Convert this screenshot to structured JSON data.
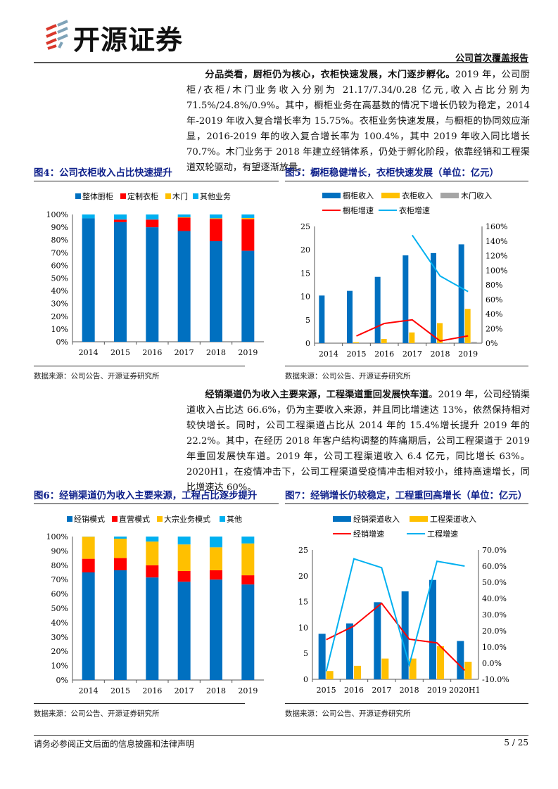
{
  "header": {
    "logo_text": "开源证券",
    "report_type": "公司首次覆盖报告"
  },
  "paragraph1": {
    "lead": "分品类看，厨柜仍为核心，衣柜快速发展，木门逐步孵化。",
    "body": "2019 年，公司厨柜/衣柜/木门业务收入分别为 21.17/7.34/0.28 亿元,收入占比分别为 71.5%/24.8%/0.9%。其中，橱柜业务在高基数的情况下增长仍较为稳定，2014 年-2019 年收入复合增长率为 15.75%。衣柜业务快速发展，与橱柜的协同效应渐显，2016-2019 年的收入复合增长率为 100.4%，其中 2019 年收入同比增长 70.7%。木门业务于 2018 年建立经销体系，仍处于孵化阶段，依靠经销和工程渠道双轮驱动，有望逐渐放量。"
  },
  "paragraph2": {
    "lead": "经销渠道仍为收入主要来源，工程渠道重回发展快车道",
    "body": "。2019 年，公司经销渠道收入占比达 66.6%，仍为主要收入来源，并且同比增速达 13%，依然保持相对较快增长。同时，公司工程渠道占比从 2014 年的 15.4%增长提升 2019 年的 22.2%。其中，在经历 2018 年客户结构调整的阵痛期后，公司工程渠道于 2019 年重回发展快车道。2019 年，公司工程渠道收入 6.4 亿元，同比增长 63%。2020H1，在疫情冲击下，公司工程渠道受疫情冲击相对较小，维持高速增长，同比增速达 60%。"
  },
  "figures": [
    {
      "title": "图4：公司衣柜收入占比快速提升",
      "source": "数据来源：公司公告、开源证券研究所"
    },
    {
      "title": "图5：橱柜稳健增长，衣柜快速发展（单位：亿元）",
      "source": "数据来源：公司公告、开源证券研究所"
    },
    {
      "title": "图6：经销渠道仍为收入主要来源，工程占比逐步提升",
      "source": "数据来源：公司公告、开源证券研究所"
    },
    {
      "title": "图7：经销增长仍较稳定，工程重回高增长（单位：亿元）",
      "source": "数据来源：公司公告、开源证券研究所"
    }
  ],
  "chart_data": [
    {
      "type": "bar",
      "stacked": true,
      "categories": [
        "2014",
        "2015",
        "2016",
        "2017",
        "2018",
        "2019"
      ],
      "ylim": [
        0,
        100
      ],
      "yticks": [
        "0%",
        "10%",
        "20%",
        "30%",
        "40%",
        "50%",
        "60%",
        "70%",
        "80%",
        "90%",
        "100%"
      ],
      "legend": "top",
      "grid": false,
      "series": [
        {
          "name": "整体厨柜",
          "color": "#0070c0",
          "values": [
            97,
            94,
            90,
            87,
            79,
            71.5
          ]
        },
        {
          "name": "定制衣柜",
          "color": "#ff0000",
          "values": [
            0,
            2,
            6,
            10.5,
            17.5,
            24.8
          ]
        },
        {
          "name": "木门",
          "color": "#ffc000",
          "values": [
            0,
            0,
            0,
            0.3,
            0.5,
            0.9
          ]
        },
        {
          "name": "其他业务",
          "color": "#00b0f0",
          "values": [
            3,
            4,
            4,
            2.2,
            3,
            2.8
          ]
        }
      ]
    },
    {
      "type": "bar+line",
      "categories": [
        "2014",
        "2015",
        "2016",
        "2017",
        "2018",
        "2019"
      ],
      "ylim": [
        0,
        25
      ],
      "yticks": [
        "0",
        "5",
        "10",
        "15",
        "20",
        "25"
      ],
      "y2lim": [
        0,
        160
      ],
      "y2ticks": [
        "0%",
        "20%",
        "40%",
        "60%",
        "80%",
        "100%",
        "120%",
        "140%",
        "160%"
      ],
      "legend": "top",
      "grid": false,
      "bars": [
        {
          "name": "橱柜收入",
          "color": "#0070c0",
          "values": [
            10.2,
            11.2,
            14.2,
            18.8,
            19.3,
            21.17
          ]
        },
        {
          "name": "衣柜收入",
          "color": "#ffc000",
          "values": [
            0,
            0.2,
            0.9,
            2.3,
            4.3,
            7.34
          ]
        },
        {
          "name": "木门收入",
          "color": "#a5a5a5",
          "values": [
            0,
            0,
            0,
            0,
            0.1,
            0.28
          ]
        }
      ],
      "lines": [
        {
          "name": "橱柜增速",
          "color": "#ff0000",
          "values": [
            null,
            9.8,
            27,
            32,
            3,
            10
          ]
        },
        {
          "name": "衣柜增速",
          "color": "#00b0f0",
          "values": [
            null,
            null,
            null,
            148,
            92,
            70.7
          ]
        }
      ]
    },
    {
      "type": "bar",
      "stacked": true,
      "categories": [
        "2014",
        "2015",
        "2016",
        "2017",
        "2018",
        "2019"
      ],
      "ylim": [
        0,
        100
      ],
      "yticks": [
        "0%",
        "10%",
        "20%",
        "30%",
        "40%",
        "50%",
        "60%",
        "70%",
        "80%",
        "90%",
        "100%"
      ],
      "legend": "top",
      "grid": false,
      "series": [
        {
          "name": "经销模式",
          "color": "#0070c0",
          "values": [
            75,
            76.5,
            71.5,
            68.5,
            70,
            66.6
          ]
        },
        {
          "name": "直营模式",
          "color": "#ff0000",
          "values": [
            9.5,
            8.5,
            8.5,
            7.5,
            6.5,
            6.4
          ]
        },
        {
          "name": "大宗业务模式",
          "color": "#ffc000",
          "values": [
            15.4,
            13.5,
            16.5,
            18.5,
            16,
            22.2
          ]
        },
        {
          "name": "其他",
          "color": "#00b0f0",
          "values": [
            0.1,
            1.5,
            3.5,
            5.5,
            7.5,
            4.8
          ]
        }
      ]
    },
    {
      "type": "bar+line",
      "categories": [
        "2015",
        "2016",
        "2017",
        "2018",
        "2019",
        "2020H1"
      ],
      "ylim": [
        0,
        25
      ],
      "yticks": [
        "0",
        "5",
        "10",
        "15",
        "20",
        "25"
      ],
      "y2lim": [
        -10,
        70
      ],
      "y2ticks": [
        "-10.0%",
        "0.0%",
        "10.0%",
        "20.0%",
        "30.0%",
        "40.0%",
        "50.0%",
        "60.0%",
        "70.0%"
      ],
      "legend": "top",
      "grid": false,
      "bars": [
        {
          "name": "经销渠道收入",
          "color": "#0070c0",
          "values": [
            8.8,
            10.8,
            14.9,
            17.0,
            19.2,
            7.4
          ]
        },
        {
          "name": "工程渠道收入",
          "color": "#ffc000",
          "values": [
            1.6,
            2.6,
            4.0,
            4.0,
            6.4,
            3.4
          ]
        }
      ],
      "lines": [
        {
          "name": "经销增速",
          "color": "#ff0000",
          "values": [
            14.5,
            23,
            37,
            14.8,
            12.5,
            -4.5
          ]
        },
        {
          "name": "工程增速",
          "color": "#00b0f0",
          "values": [
            -5,
            64.5,
            59,
            -1,
            63,
            60
          ]
        }
      ]
    }
  ],
  "footer": {
    "disclaimer": "请务必参阅正文后面的信息披露和法律声明",
    "page": "5 / 25"
  }
}
